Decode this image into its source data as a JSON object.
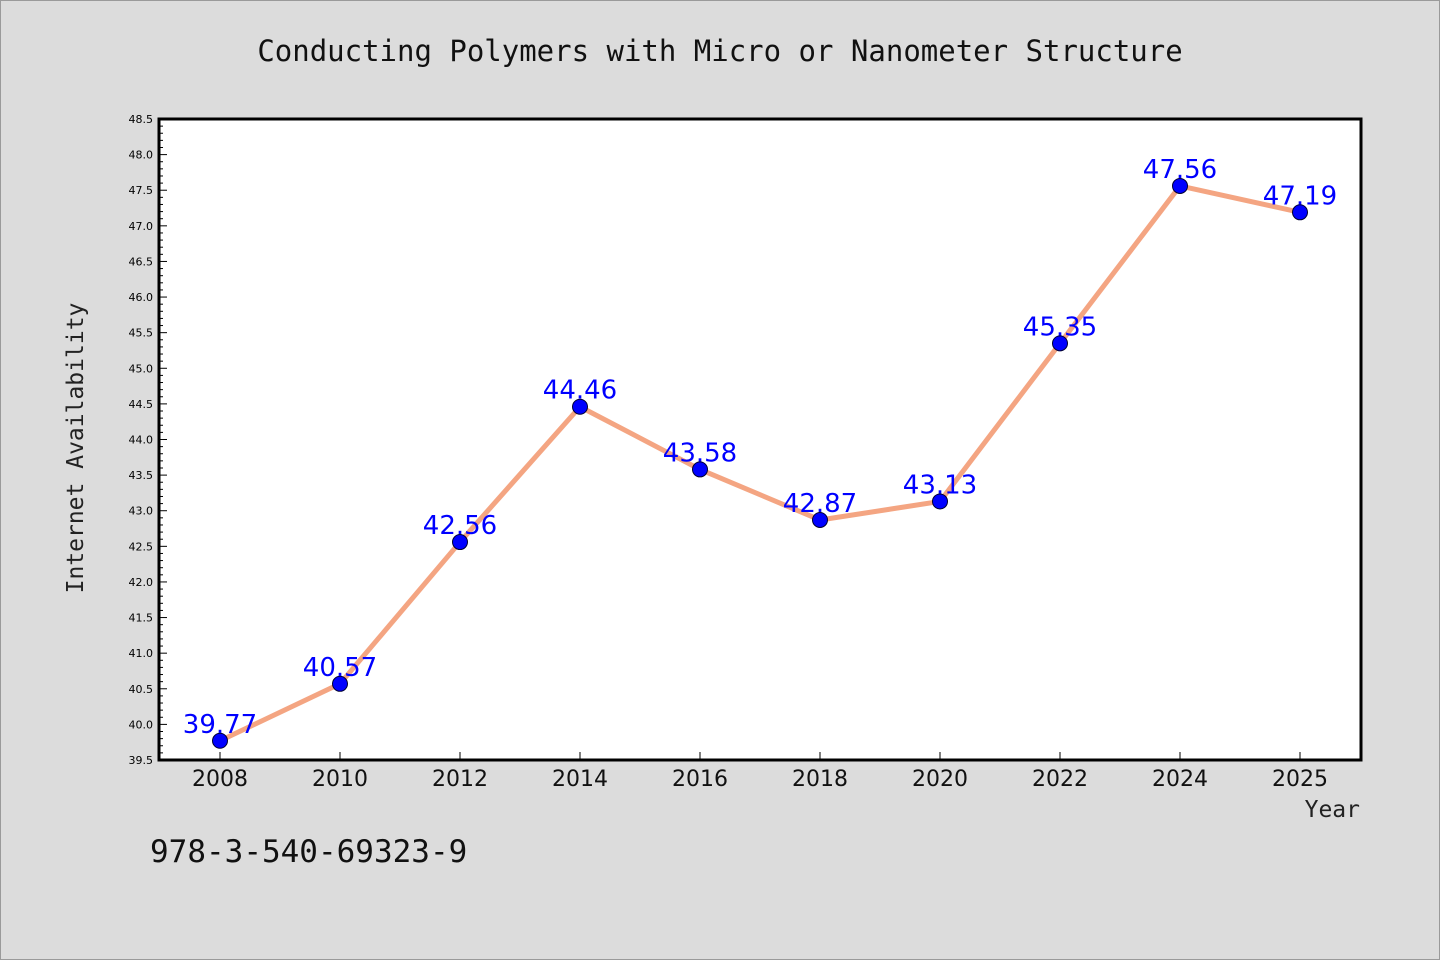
{
  "chart_data": {
    "type": "line",
    "title": "Conducting Polymers with Micro or Nanometer Structure",
    "xlabel": "Year",
    "ylabel": "Internet Availability",
    "categories": [
      "2008",
      "2010",
      "2012",
      "2014",
      "2016",
      "2018",
      "2020",
      "2022",
      "2024",
      "2025"
    ],
    "series": [
      {
        "values": [
          39.77,
          40.57,
          42.56,
          44.46,
          43.58,
          42.87,
          43.13,
          45.35,
          47.56,
          47.19
        ]
      }
    ],
    "data_labels": [
      "39.77",
      "40.57",
      "42.56",
      "44.46",
      "43.58",
      "42.87",
      "43.13",
      "45.35",
      "47.56",
      "47.19"
    ],
    "ylim": [
      39.5,
      48.5
    ],
    "yticks": [
      "39.5",
      "40.0",
      "40.5",
      "41.0",
      "41.5",
      "42.0",
      "42.5",
      "43.0",
      "43.5",
      "44.0",
      "44.5",
      "45.0",
      "45.5",
      "46.0",
      "46.5",
      "47.0",
      "47.5",
      "48.0",
      "48.5"
    ],
    "grid": false,
    "legend": "none",
    "colors": {
      "line": "#f4a582",
      "marker": "#0000ff",
      "label": "#0000ff",
      "background": "#dcdcdc",
      "plot_area": "#ffffff"
    }
  },
  "footer": {
    "text": "978-3-540-69323-9"
  }
}
